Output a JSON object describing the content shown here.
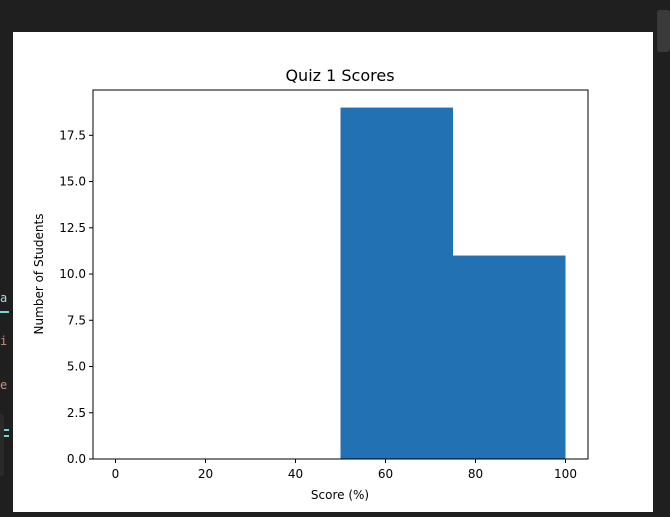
{
  "left_gutter": {
    "glyphs": [
      "a",
      "i",
      "e"
    ]
  },
  "chart_data": {
    "type": "bar",
    "title": "Quiz 1 Scores",
    "xlabel": "Score (%)",
    "ylabel": "Number of Students",
    "bins": [
      {
        "start": 50,
        "end": 75,
        "value": 19
      },
      {
        "start": 75,
        "end": 100,
        "value": 11
      }
    ],
    "xlim": [
      -5,
      105
    ],
    "ylim": [
      0,
      19.95
    ],
    "xticks": [
      0,
      20,
      40,
      60,
      80,
      100
    ],
    "xtick_labels": [
      "0",
      "20",
      "40",
      "60",
      "80",
      "100"
    ],
    "yticks": [
      0,
      2.5,
      5,
      7.5,
      10,
      12.5,
      15,
      17.5
    ],
    "ytick_labels": [
      "0.0",
      "2.5",
      "5.0",
      "7.5",
      "10.0",
      "12.5",
      "15.0",
      "17.5"
    ],
    "bar_color": "#2271b2",
    "grid": false,
    "legend": "none"
  }
}
